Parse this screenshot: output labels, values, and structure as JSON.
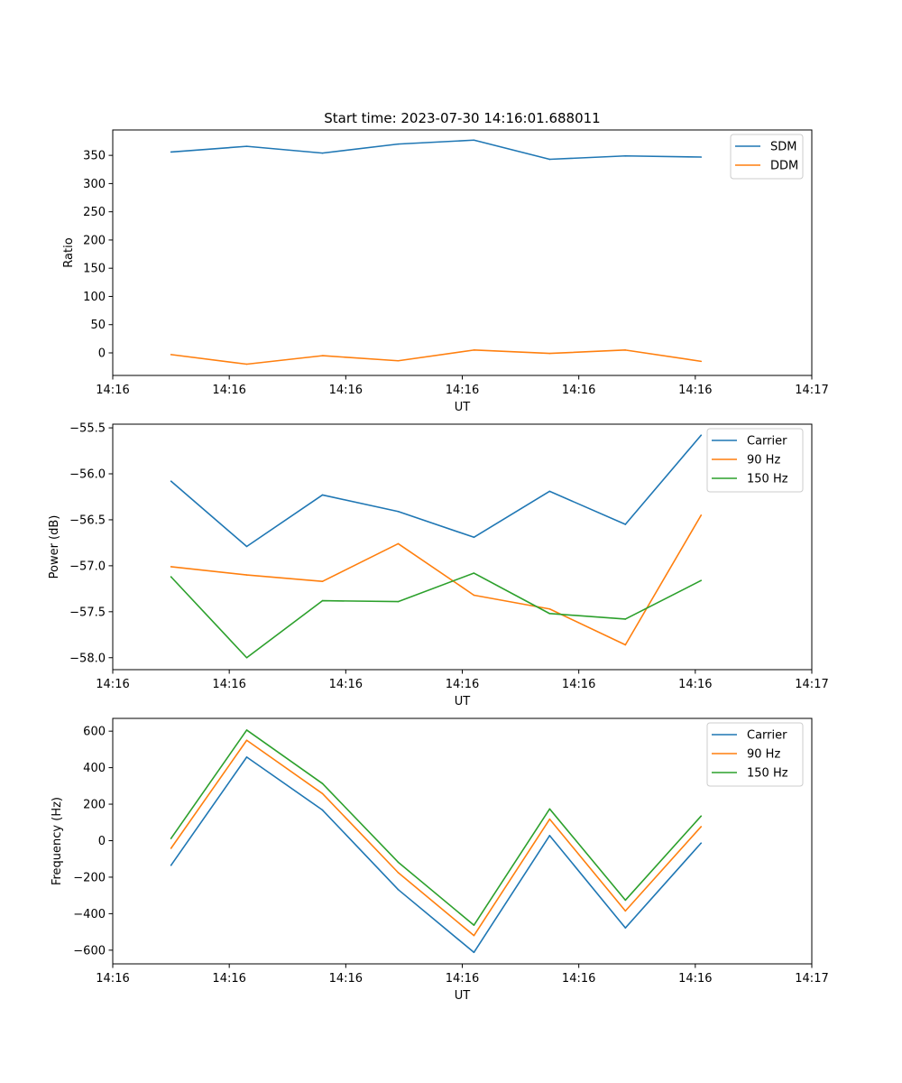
{
  "figure_title": "Start time: 2023-07-30 14:16:01.688011",
  "series_colors": {
    "blue": "#1f77b4",
    "orange": "#ff7f0e",
    "green": "#2ca02c"
  },
  "chart_data": [
    {
      "type": "line",
      "title": "Start time: 2023-07-30 14:16:01.688011",
      "xlabel": "UT",
      "ylabel": "Ratio",
      "x": [
        0.5,
        1.15,
        1.8,
        2.45,
        3.1,
        3.75,
        4.4,
        5.05
      ],
      "xlim": [
        0,
        6
      ],
      "xticks": [
        0,
        1,
        2,
        3,
        4,
        5,
        6
      ],
      "xtick_labels": [
        "14:16",
        "14:16",
        "14:16",
        "14:16",
        "14:16",
        "14:16",
        "14:17"
      ],
      "ylim": [
        -40,
        395
      ],
      "yticks": [
        0,
        50,
        100,
        150,
        200,
        250,
        300,
        350
      ],
      "ytick_labels": [
        "0",
        "50",
        "100",
        "150",
        "200",
        "250",
        "300",
        "350"
      ],
      "legend_position": "top-right",
      "series": [
        {
          "name": "SDM",
          "color": "#1f77b4",
          "values": [
            356,
            366,
            354,
            370,
            377,
            343,
            349,
            347
          ]
        },
        {
          "name": "DDM",
          "color": "#ff7f0e",
          "values": [
            -3,
            -20,
            -5,
            -14,
            5,
            -1,
            5,
            -15
          ]
        }
      ]
    },
    {
      "type": "line",
      "title": "",
      "xlabel": "UT",
      "ylabel": "Power (dB)",
      "x": [
        0.5,
        1.15,
        1.8,
        2.45,
        3.1,
        3.75,
        4.4,
        5.05
      ],
      "xlim": [
        0,
        6
      ],
      "xticks": [
        0,
        1,
        2,
        3,
        4,
        5,
        6
      ],
      "xtick_labels": [
        "14:16",
        "14:16",
        "14:16",
        "14:16",
        "14:16",
        "14:16",
        "14:17"
      ],
      "ylim": [
        -58.13,
        -55.46
      ],
      "yticks": [
        -58.0,
        -57.5,
        -57.0,
        -56.5,
        -56.0,
        -55.5
      ],
      "ytick_labels": [
        "−58.0",
        "−57.5",
        "−57.0",
        "−56.5",
        "−56.0",
        "−55.5"
      ],
      "legend_position": "top-right",
      "series": [
        {
          "name": "Carrier",
          "color": "#1f77b4",
          "values": [
            -56.08,
            -56.79,
            -56.23,
            -56.41,
            -56.69,
            -56.19,
            -56.55,
            -55.58
          ]
        },
        {
          "name": "90 Hz",
          "color": "#ff7f0e",
          "values": [
            -57.01,
            -57.1,
            -57.17,
            -56.76,
            -57.32,
            -57.47,
            -57.86,
            -56.45
          ]
        },
        {
          "name": "150 Hz",
          "color": "#2ca02c",
          "values": [
            -57.12,
            -58.0,
            -57.38,
            -57.39,
            -57.08,
            -57.52,
            -57.58,
            -57.16
          ]
        }
      ]
    },
    {
      "type": "line",
      "title": "",
      "xlabel": "UT",
      "ylabel": "Frequency (Hz)",
      "x": [
        0.5,
        1.15,
        1.8,
        2.45,
        3.1,
        3.75,
        4.4,
        5.05
      ],
      "xlim": [
        0,
        6
      ],
      "xticks": [
        0,
        1,
        2,
        3,
        4,
        5,
        6
      ],
      "xtick_labels": [
        "14:16",
        "14:16",
        "14:16",
        "14:16",
        "14:16",
        "14:16",
        "14:17"
      ],
      "ylim": [
        -675,
        670
      ],
      "yticks": [
        -600,
        -400,
        -200,
        0,
        200,
        400,
        600
      ],
      "ytick_labels": [
        "−600",
        "−400",
        "−200",
        "0",
        "200",
        "400",
        "600"
      ],
      "legend_position": "top-right",
      "series": [
        {
          "name": "Carrier",
          "color": "#1f77b4",
          "values": [
            -135,
            458,
            168,
            -268,
            -612,
            28,
            -478,
            -13
          ]
        },
        {
          "name": "90 Hz",
          "color": "#ff7f0e",
          "values": [
            -42,
            550,
            258,
            -175,
            -520,
            118,
            -385,
            77
          ]
        },
        {
          "name": "150 Hz",
          "color": "#2ca02c",
          "values": [
            12,
            606,
            313,
            -118,
            -463,
            174,
            -326,
            135
          ]
        }
      ]
    }
  ]
}
